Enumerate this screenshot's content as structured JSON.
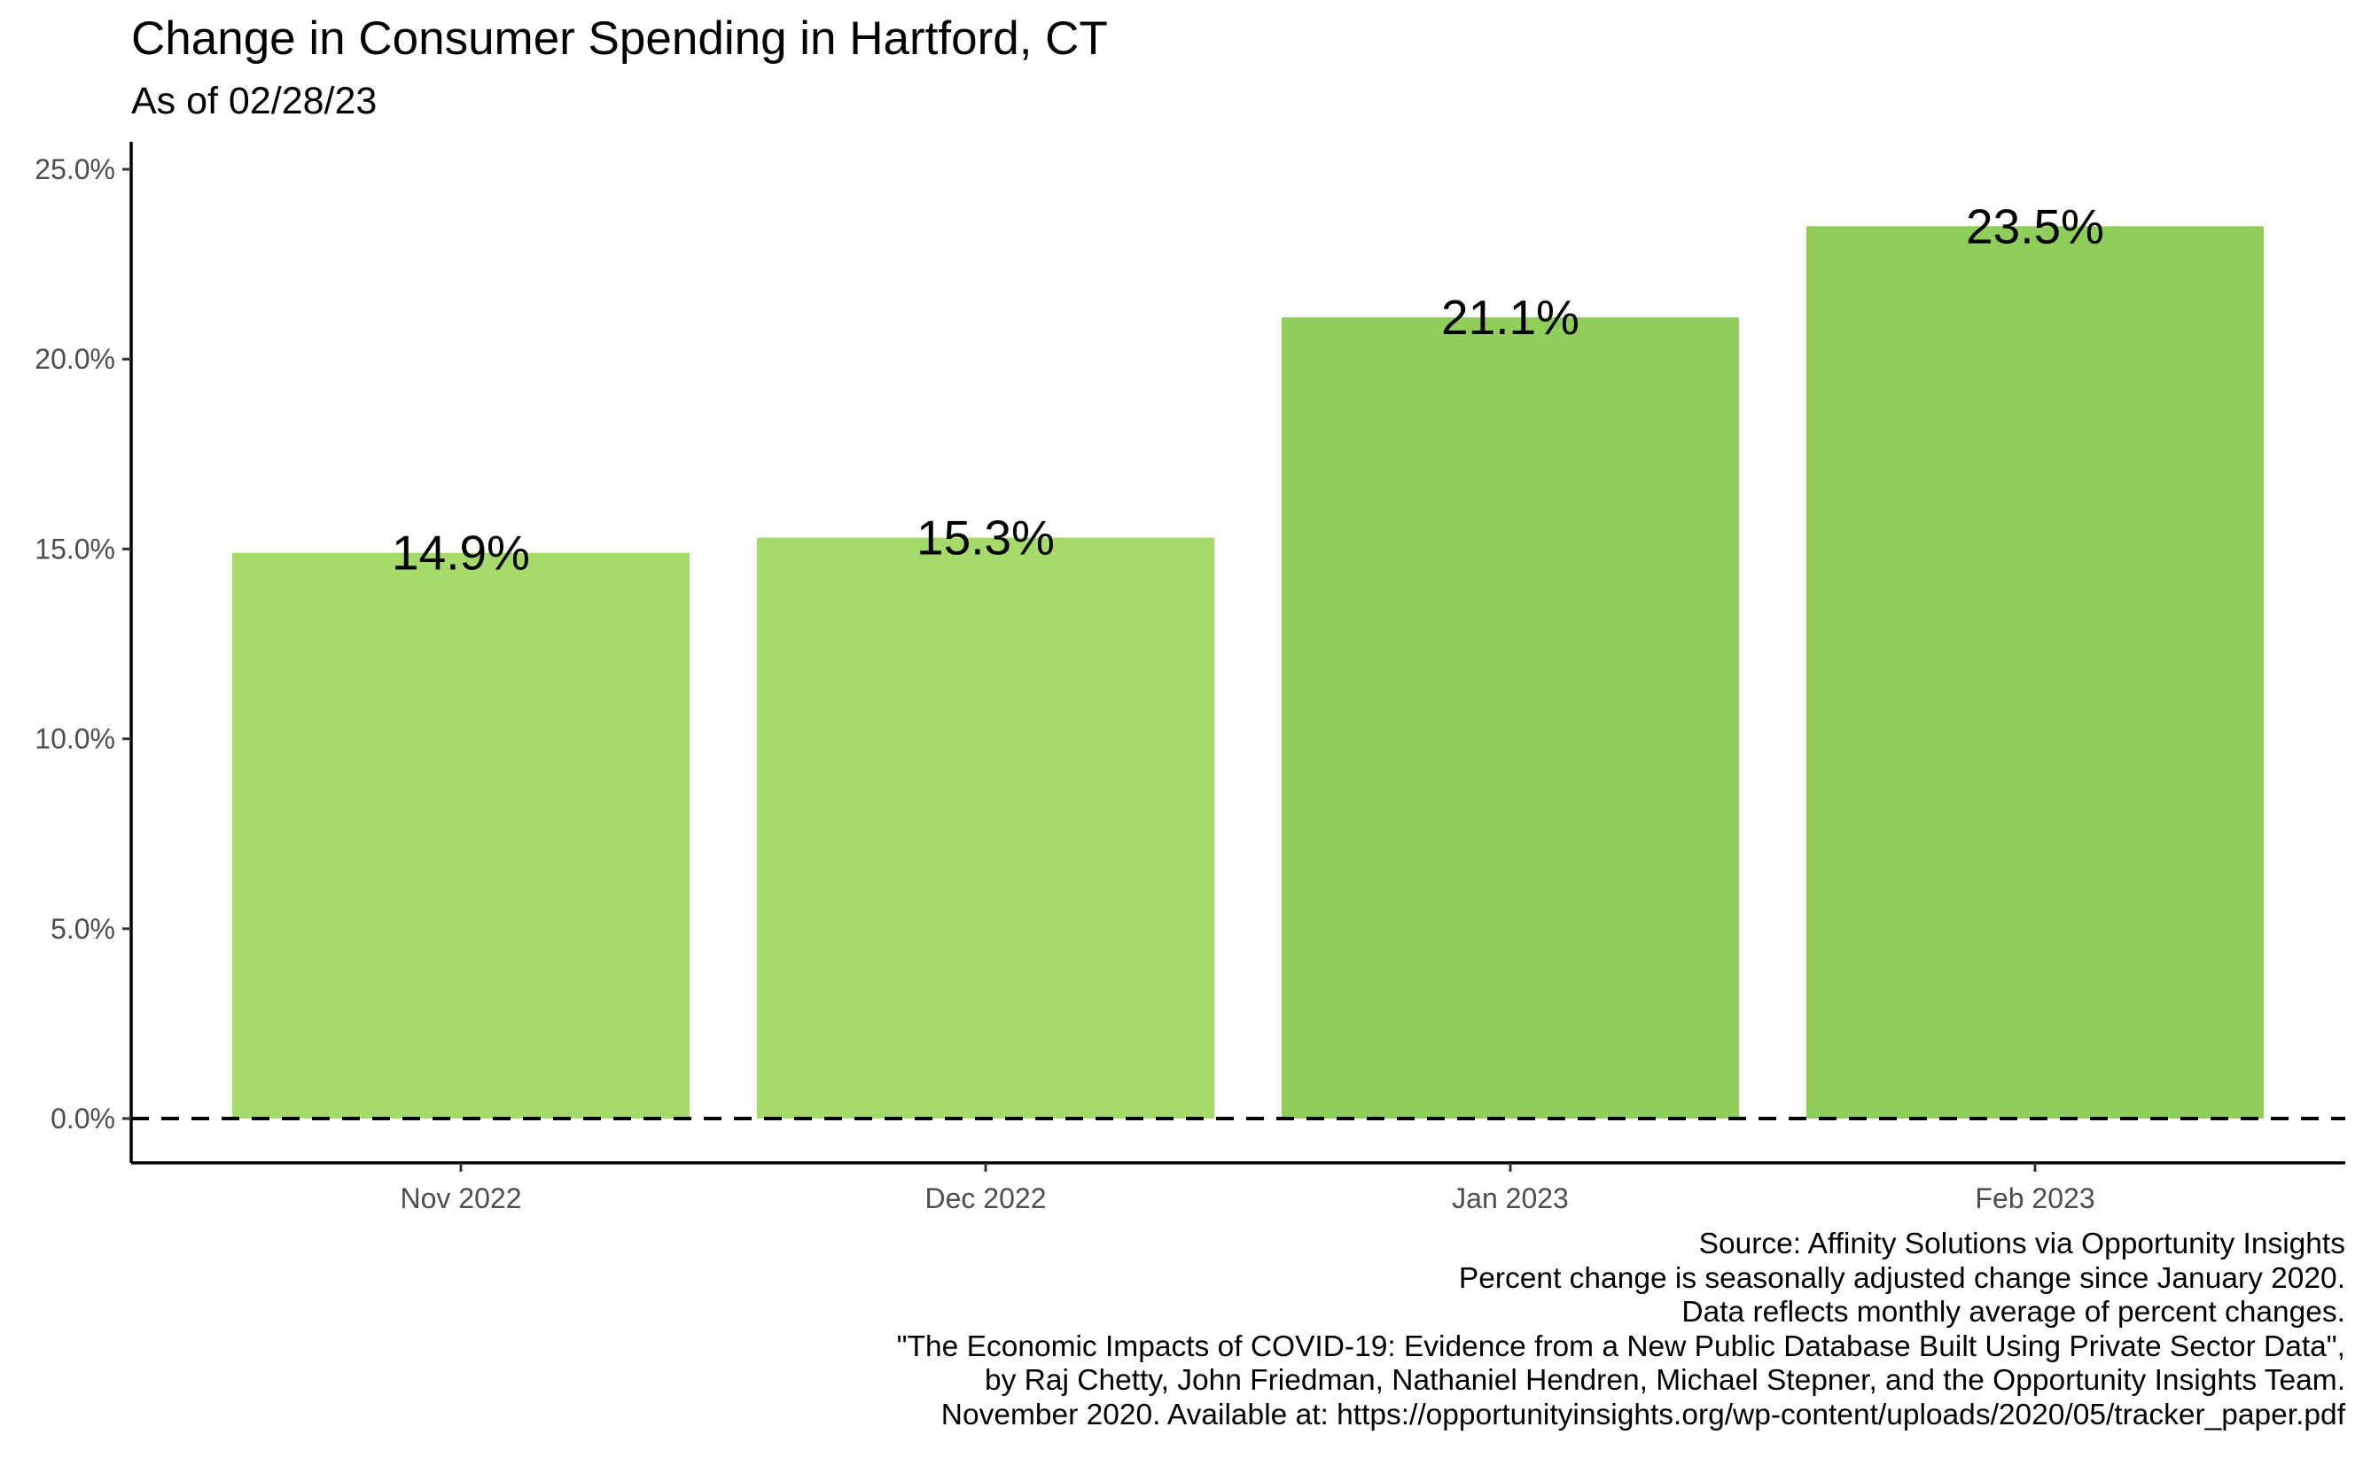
{
  "chart_data": {
    "type": "bar",
    "title": "Change in Consumer Spending in Hartford, CT",
    "subtitle": "As of 02/28/23",
    "categories": [
      "Nov 2022",
      "Dec 2022",
      "Jan 2023",
      "Feb 2023"
    ],
    "values": [
      14.9,
      15.3,
      21.1,
      23.5
    ],
    "value_labels": [
      "14.9%",
      "15.3%",
      "21.1%",
      "23.5%"
    ],
    "bar_colors": [
      "#a6db6b",
      "#a6db6b",
      "#8fce5a",
      "#8fce5a"
    ],
    "ylim": [
      -1.2,
      25.7
    ],
    "yticks": [
      0,
      5,
      10,
      15,
      20,
      25
    ],
    "ytick_labels": [
      "0.0%",
      "5.0%",
      "10.0%",
      "15.0%",
      "20.0%",
      "25.0%"
    ],
    "reference_line": {
      "y": 0,
      "style": "dashed",
      "color": "#000000"
    },
    "grid": false,
    "xlabel": "",
    "ylabel": "",
    "caption": [
      "Source: Affinity Solutions via Opportunity Insights",
      "Percent change is seasonally adjusted change since January 2020.",
      "Data reflects monthly average of percent changes.",
      "\"The Economic Impacts of COVID-19: Evidence from a New Public Database Built Using Private Sector Data\",",
      "by Raj Chetty, John Friedman, Nathaniel Hendren, Michael Stepner, and the Opportunity Insights Team.",
      "November 2020. Available at: https://opportunityinsights.org/wp-content/uploads/2020/05/tracker_paper.pdf"
    ]
  }
}
